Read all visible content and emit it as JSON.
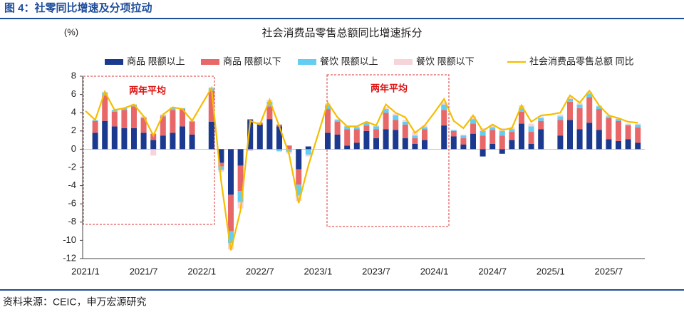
{
  "header": "图 4：社零同比增速及分项拉动",
  "source": "资料来源：CEIC，申万宏源研究",
  "chart_data": {
    "type": "bar",
    "stacked": true,
    "title": "社会消费品零售总额同比增速拆分",
    "y_label": "(%)",
    "categories": [
      "2021/1",
      null,
      null,
      null,
      null,
      null,
      "2021/7",
      null,
      null,
      null,
      null,
      null,
      "2022/1",
      null,
      null,
      null,
      null,
      null,
      "2022/7",
      null,
      null,
      null,
      null,
      null,
      "2023/1",
      null,
      null,
      null,
      null,
      null,
      "2023/7",
      null,
      null,
      null,
      null,
      null,
      "2024/1",
      null,
      null,
      null,
      null,
      null,
      "2024/7",
      null,
      null,
      null,
      null,
      null,
      "2025/1",
      null,
      null,
      null,
      null,
      null,
      "2025/7",
      null,
      null,
      null
    ],
    "ylim": [
      -12,
      8
    ],
    "yticks": [
      -12,
      -10,
      -8,
      -6,
      -4,
      -2,
      0,
      2,
      4,
      6,
      8
    ],
    "grid": false,
    "legend": "top",
    "annotations": [
      {
        "text": "两年平均"
      },
      {
        "text": "两年平均"
      }
    ],
    "series": [
      {
        "name": "商品 限额以上",
        "color": "#1b3a8f",
        "values": [
          null,
          1.8,
          3.1,
          2.5,
          2.3,
          2.3,
          1.8,
          1.0,
          1.5,
          1.8,
          2.5,
          1.6,
          null,
          3.0,
          -1.5,
          -5.0,
          -1.8,
          3.2,
          2.7,
          3.3,
          2.5,
          0.0,
          -2.2,
          0.3,
          null,
          1.8,
          1.6,
          0.4,
          0.7,
          2.0,
          1.2,
          2.2,
          2.1,
          1.2,
          0.6,
          1.0,
          null,
          2.6,
          1.4,
          0.5,
          1.7,
          -0.8,
          0.6,
          -0.5,
          1.0,
          2.8,
          0.6,
          2.2,
          null,
          1.5,
          3.2,
          2.2,
          2.9,
          2.1,
          1.1,
          0.9,
          1.1,
          0.7
        ]
      },
      {
        "name": "商品 限额以下",
        "color": "#e8686a",
        "values": [
          null,
          1.3,
          2.8,
          1.6,
          2.0,
          2.4,
          1.6,
          0.7,
          2.1,
          2.5,
          1.9,
          1.4,
          null,
          3.4,
          -0.4,
          -4.0,
          -2.8,
          0.1,
          0.2,
          1.4,
          0.2,
          0.4,
          -1.7,
          0.0,
          null,
          2.6,
          1.4,
          1.8,
          1.5,
          0.6,
          1.0,
          1.8,
          1.1,
          1.5,
          0.6,
          1.2,
          null,
          1.7,
          0.6,
          0.7,
          1.1,
          1.5,
          1.5,
          1.5,
          0.9,
          1.3,
          1.3,
          0.9,
          null,
          1.7,
          2.0,
          2.3,
          2.8,
          2.3,
          2.3,
          2.2,
          1.5,
          1.7
        ]
      },
      {
        "name": "餐饮 限额以上",
        "color": "#63cdf2",
        "values": [
          null,
          0.1,
          0.3,
          0.2,
          0.2,
          0.2,
          0.1,
          0.0,
          0.1,
          0.2,
          0.1,
          0.1,
          null,
          0.3,
          -0.4,
          -1.3,
          -1.2,
          -0.1,
          0.0,
          0.5,
          -0.2,
          -0.3,
          -1.2,
          -0.6,
          null,
          0.4,
          0.2,
          0.3,
          0.2,
          0.3,
          0.3,
          0.4,
          0.5,
          0.3,
          0.3,
          0.2,
          null,
          0.6,
          0.1,
          0.3,
          0.5,
          0.5,
          0.3,
          0.5,
          0.3,
          0.4,
          0.6,
          0.3,
          null,
          0.4,
          0.3,
          0.4,
          0.4,
          0.3,
          0.2,
          0.2,
          0.1,
          0.3
        ]
      },
      {
        "name": "餐饮 限额以下",
        "color": "#f7d3da",
        "values": [
          null,
          0.0,
          0.1,
          0.0,
          0.0,
          0.0,
          0.1,
          -0.7,
          0.1,
          0.1,
          0.0,
          0.0,
          null,
          0.1,
          -0.2,
          -0.7,
          -0.7,
          -0.1,
          0.0,
          0.2,
          -0.1,
          -0.2,
          -0.6,
          -0.2,
          null,
          0.2,
          0.1,
          0.1,
          0.1,
          0.1,
          0.1,
          0.2,
          0.2,
          0.2,
          0.4,
          0.2,
          null,
          0.3,
          0.0,
          0.1,
          0.3,
          0.3,
          0.3,
          0.3,
          0.2,
          0.3,
          0.3,
          0.2,
          null,
          0.2,
          0.2,
          0.2,
          0.2,
          0.1,
          0.1,
          0.1,
          0.1,
          0.1
        ]
      },
      {
        "name": "社会消费品零售总额 同比",
        "type": "line",
        "color": "#f5be00",
        "values": [
          4.2,
          3.2,
          6.3,
          4.3,
          4.5,
          4.9,
          3.6,
          1.5,
          3.8,
          4.6,
          4.4,
          3.1,
          4.9,
          6.7,
          -3.5,
          -11.1,
          -6.7,
          3.1,
          2.7,
          5.4,
          2.5,
          -0.5,
          -5.9,
          -1.8,
          1.6,
          5.1,
          3.5,
          2.5,
          2.5,
          3.0,
          2.6,
          4.9,
          4.0,
          3.5,
          1.8,
          2.6,
          4.0,
          5.5,
          3.1,
          2.3,
          3.7,
          2.0,
          2.7,
          2.1,
          2.3,
          4.8,
          3.0,
          3.7,
          3.8,
          4.0,
          5.9,
          5.1,
          6.4,
          4.8,
          3.7,
          3.4,
          3.0,
          2.9
        ]
      }
    ]
  }
}
